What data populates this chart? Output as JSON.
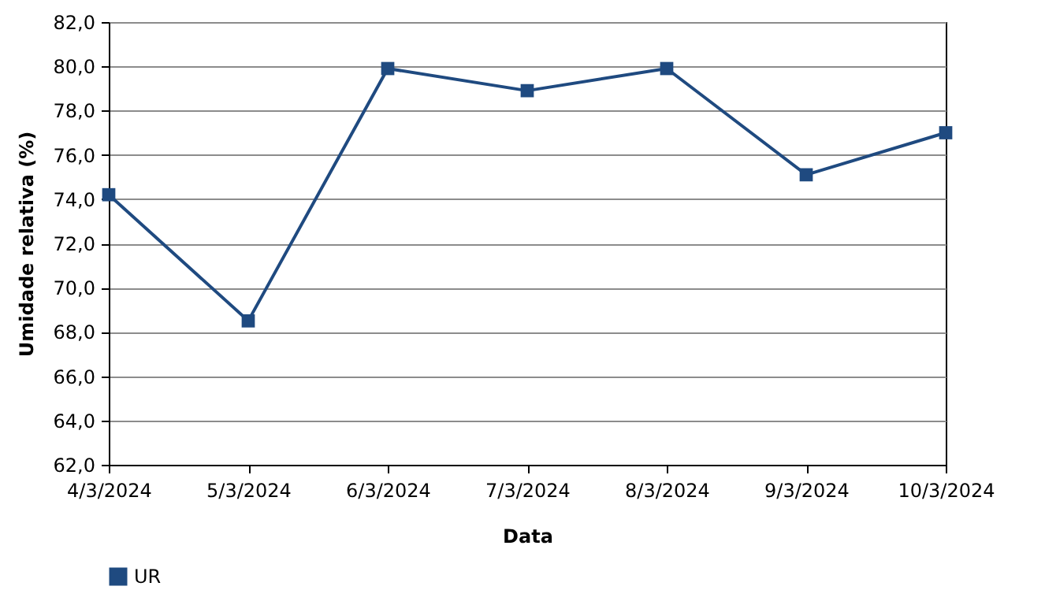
{
  "chart_data": {
    "type": "line",
    "xlabel": "Data",
    "ylabel": "Umidade relativa (%)",
    "categories": [
      "4/3/2024",
      "5/3/2024",
      "6/3/2024",
      "7/3/2024",
      "8/3/2024",
      "9/3/2024",
      "10/3/2024"
    ],
    "series": [
      {
        "name": "UR",
        "color": "#1f4a80",
        "values": [
          74.2,
          68.5,
          79.9,
          78.9,
          79.9,
          75.1,
          77.0
        ]
      }
    ],
    "ylim": [
      62,
      82
    ],
    "yticks": [
      {
        "value": 62,
        "label": "62,0"
      },
      {
        "value": 64,
        "label": "64,0"
      },
      {
        "value": 66,
        "label": "66,0"
      },
      {
        "value": 68,
        "label": "68,0"
      },
      {
        "value": 70,
        "label": "70,0"
      },
      {
        "value": 72,
        "label": "72,0"
      },
      {
        "value": 74,
        "label": "74,0"
      },
      {
        "value": 76,
        "label": "76,0"
      },
      {
        "value": 78,
        "label": "78,0"
      },
      {
        "value": 80,
        "label": "80,0"
      },
      {
        "value": 82,
        "label": "82,0"
      }
    ],
    "grid": "y",
    "legend": "bottom",
    "marker": "square",
    "line_style": "solid"
  }
}
